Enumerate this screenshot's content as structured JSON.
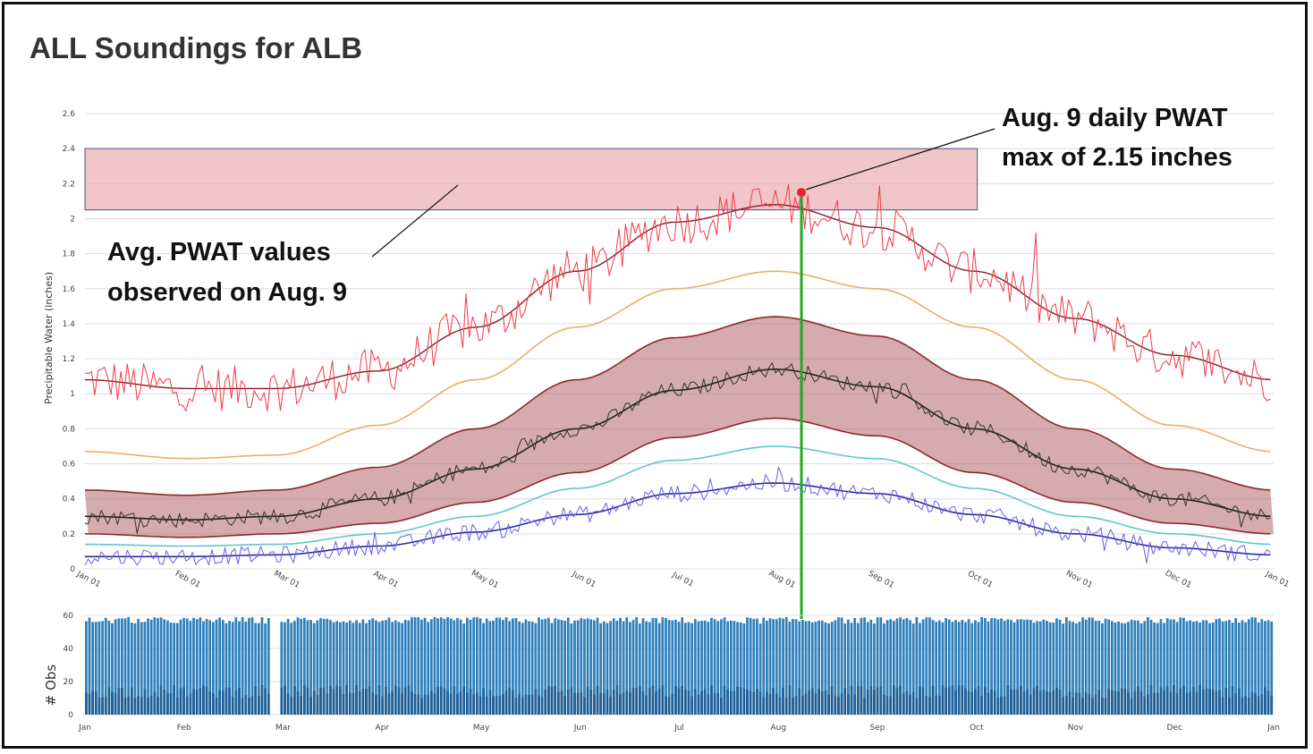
{
  "title": "ALL Soundings for ALB",
  "colors": {
    "daily_max": "#f03a4a",
    "max_smooth": "#8b1a24",
    "p90": "#e8b06a",
    "mean_daily": "#333333",
    "mean_smooth": "#222222",
    "band_fill": "#b5666a",
    "band_edge": "#8b2a2a",
    "p10": "#5ec8c8",
    "daily_min": "#6b5cf0",
    "min_smooth": "#2a2a9a",
    "highlight_fill": "#e8a0a4",
    "highlight_edge": "#3a5a8a",
    "marker_line": "#22aa22",
    "obs_bars": "#2e7fba"
  },
  "chart_data": [
    {
      "type": "line",
      "ylabel": "Precipitable Water (inches)",
      "xlabel": "",
      "ylim": [
        0,
        2.6
      ],
      "yticks": [
        "0",
        "0.2",
        "0.4",
        "0.6",
        "0.8",
        "1",
        "1.2",
        "1.4",
        "1.6",
        "1.8",
        "2",
        "2.2",
        "2.4",
        "2.6"
      ],
      "xticks": [
        "Jan 01",
        "Feb 01",
        "Mar 01",
        "Apr 01",
        "May 01",
        "Jun 01",
        "Jul 01",
        "Aug 01",
        "Sep 01",
        "Oct 01",
        "Nov 01",
        "Dec 01",
        "Jan 01"
      ],
      "grid": true,
      "series_curves": [
        {
          "key": "max_smooth",
          "days": [
            0,
            31,
            59,
            90,
            120,
            151,
            181,
            212,
            243,
            273,
            304,
            334,
            365
          ],
          "values": [
            1.08,
            1.03,
            1.03,
            1.13,
            1.38,
            1.7,
            1.98,
            2.08,
            1.95,
            1.7,
            1.43,
            1.22,
            1.08
          ]
        },
        {
          "key": "p90",
          "days": [
            0,
            31,
            59,
            90,
            120,
            151,
            181,
            212,
            243,
            273,
            304,
            334,
            365
          ],
          "values": [
            0.67,
            0.63,
            0.65,
            0.82,
            1.08,
            1.38,
            1.6,
            1.7,
            1.6,
            1.38,
            1.08,
            0.82,
            0.67
          ]
        },
        {
          "key": "band_upper",
          "days": [
            0,
            31,
            59,
            90,
            120,
            151,
            181,
            212,
            243,
            273,
            304,
            334,
            365
          ],
          "values": [
            0.45,
            0.42,
            0.45,
            0.58,
            0.8,
            1.08,
            1.32,
            1.44,
            1.33,
            1.08,
            0.8,
            0.57,
            0.45
          ]
        },
        {
          "key": "mean_smooth",
          "days": [
            0,
            31,
            59,
            90,
            120,
            151,
            181,
            212,
            243,
            273,
            304,
            334,
            365
          ],
          "values": [
            0.3,
            0.28,
            0.3,
            0.4,
            0.57,
            0.8,
            1.02,
            1.14,
            1.04,
            0.8,
            0.57,
            0.4,
            0.3
          ]
        },
        {
          "key": "band_lower",
          "days": [
            0,
            31,
            59,
            90,
            120,
            151,
            181,
            212,
            243,
            273,
            304,
            334,
            365
          ],
          "values": [
            0.2,
            0.18,
            0.2,
            0.26,
            0.38,
            0.55,
            0.75,
            0.86,
            0.76,
            0.55,
            0.38,
            0.26,
            0.2
          ]
        },
        {
          "key": "p10",
          "days": [
            0,
            31,
            59,
            90,
            120,
            151,
            181,
            212,
            243,
            273,
            304,
            334,
            365
          ],
          "values": [
            0.14,
            0.13,
            0.14,
            0.2,
            0.3,
            0.46,
            0.62,
            0.7,
            0.63,
            0.46,
            0.3,
            0.2,
            0.14
          ]
        },
        {
          "key": "min_smooth",
          "days": [
            0,
            31,
            59,
            90,
            120,
            151,
            181,
            212,
            243,
            273,
            304,
            334,
            365
          ],
          "values": [
            0.07,
            0.07,
            0.08,
            0.13,
            0.21,
            0.31,
            0.43,
            0.49,
            0.43,
            0.31,
            0.2,
            0.12,
            0.08
          ]
        }
      ],
      "daily_series": [
        {
          "key": "daily_max",
          "base": "max_smooth",
          "noise": 0.13
        },
        {
          "key": "mean_daily",
          "base": "mean_smooth",
          "noise": 0.045
        },
        {
          "key": "daily_min",
          "base": "min_smooth",
          "noise": 0.05
        }
      ],
      "highlight_band": {
        "y0": 2.05,
        "y1": 2.4,
        "x0_day": 0,
        "x1_day": 274
      },
      "marker": {
        "day": 220,
        "value": 2.15
      }
    },
    {
      "type": "bar",
      "ylabel": "# Obs",
      "ylim": [
        0,
        60
      ],
      "yticks": [
        "0",
        "20",
        "40",
        "60"
      ],
      "xticks": [
        "Jan",
        "Feb",
        "Mar",
        "Apr",
        "May",
        "Jun",
        "Jul",
        "Aug",
        "Sep",
        "Oct",
        "Nov",
        "Dec",
        "Jan"
      ],
      "typical_value": 57,
      "gap_day": 58
    }
  ],
  "annotations": {
    "avg_line1": "Avg. PWAT values",
    "avg_line2": "observed on Aug. 9",
    "max_line1": "Aug. 9 daily PWAT",
    "max_line2": "max of 2.15 inches"
  }
}
